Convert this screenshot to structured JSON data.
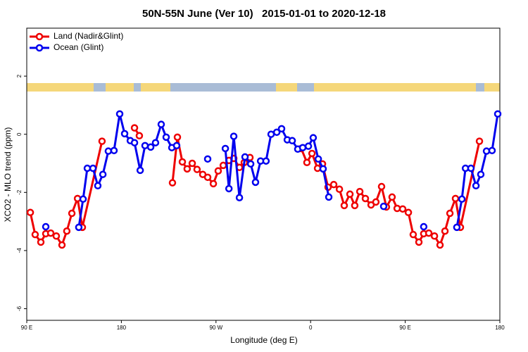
{
  "chart_data": {
    "type": "line",
    "title": "50N-55N June (Ver 10)   2015-01-01 to 2020-12-18",
    "x_label": "Longitude (deg E)",
    "y_label": "XCO2 - MLO trend (ppm)",
    "xlim": [
      90,
      540
    ],
    "xticks": [
      {
        "value": 90,
        "label": "90 E"
      },
      180,
      {
        "value": 270,
        "label": "90 W"
      },
      {
        "value": 360,
        "label": "0"
      },
      {
        "value": 450,
        "label": "90 E"
      },
      {
        "value": 540,
        "label": "180"
      }
    ],
    "ylim": [
      -6.4,
      3.65
    ],
    "yticks": [
      -6,
      -4,
      -2,
      0,
      2
    ],
    "legend": "top-left",
    "series": [
      {
        "name": "Land (Nadir&Glint)",
        "color": "#ee0000",
        "x": [
          93.4,
          98.0,
          103.4,
          108.1,
          112.8,
          118.1,
          123.5,
          128.1,
          132.9,
          138.3,
          142.9,
          161.6,
          null,
          192.5,
          197.1,
          null,
          228.6,
          233.3,
          238.0,
          242.6,
          247.4,
          252.0,
          257.4,
          262.1,
          267.5,
          272.1,
          276.9,
          282.3,
          286.9,
          292.3,
          296.9,
          302.3,
          null,
          351.1,
          356.5,
          361.3,
          366.6,
          371.3,
          376.6,
          382.0,
          387.4,
          392.0,
          397.4,
          402.0,
          406.8,
          412.1,
          417.5,
          422.1,
          427.5,
          432.1,
          437.5,
          442.3,
          447.6,
          453.0,
          457.6,
          463.0,
          467.6,
          472.4,
          477.8,
          483.1,
          487.8,
          492.5,
          497.8,
          502.5,
          520.6
        ],
        "values": [
          -2.69,
          -3.45,
          -3.71,
          -3.42,
          -3.4,
          -3.5,
          -3.81,
          -3.33,
          -2.72,
          -2.21,
          -3.2,
          -0.24,
          null,
          0.22,
          -0.05,
          null,
          -1.67,
          -0.1,
          -0.95,
          -1.19,
          -1.0,
          -1.21,
          -1.38,
          -1.48,
          -1.7,
          -1.26,
          -1.07,
          -0.9,
          -0.83,
          -1.14,
          -0.97,
          -0.8,
          null,
          -0.49,
          -0.97,
          -0.66,
          -1.17,
          -1.02,
          -1.82,
          -1.73,
          -1.89,
          -2.45,
          -2.06,
          -2.45,
          -1.97,
          -2.21,
          -2.43,
          -2.33,
          -1.8,
          -2.5,
          -2.16,
          -2.55,
          -2.57,
          -2.69,
          -3.45,
          -3.71,
          -3.42,
          -3.4,
          -3.5,
          -3.81,
          -3.33,
          -2.72,
          -2.21,
          -3.2,
          -0.24
        ]
      },
      {
        "name": "Ocean (Glint)",
        "color": "#0000ee",
        "x": [
          108.1,
          null,
          139.5,
          143.6,
          147.6,
          153.0,
          157.6,
          162.4,
          167.6,
          173.0,
          178.4,
          183.1,
          188.5,
          192.5,
          197.9,
          202.5,
          207.9,
          212.5,
          217.9,
          222.6,
          228.0,
          232.6,
          null,
          262.1,
          null,
          278.9,
          282.3,
          286.9,
          292.3,
          297.6,
          303.0,
          307.6,
          312.4,
          317.6,
          322.4,
          327.8,
          332.4,
          337.8,
          342.5,
          347.8,
          352.5,
          357.9,
          362.5,
          367.3,
          371.9,
          377.3,
          null,
          429.5,
          null,
          467.6,
          null,
          499.1,
          503.9,
          507.3,
          512.5,
          517.3,
          521.9,
          527.3,
          532.6,
          538.0
        ],
        "values": [
          -3.18,
          null,
          -3.2,
          -2.23,
          -1.17,
          -1.17,
          -1.77,
          -1.38,
          -0.58,
          -0.56,
          0.7,
          0.02,
          -0.22,
          -0.29,
          -1.24,
          -0.39,
          -0.44,
          -0.29,
          0.34,
          -0.1,
          -0.46,
          -0.39,
          null,
          -0.85,
          null,
          -0.49,
          -1.87,
          -0.07,
          -2.18,
          -0.78,
          -1.02,
          -1.65,
          -0.92,
          -0.92,
          0.0,
          0.07,
          0.19,
          -0.19,
          -0.22,
          -0.51,
          -0.46,
          -0.41,
          -0.12,
          -0.85,
          -1.19,
          -2.16,
          null,
          -2.48,
          null,
          -3.18,
          null,
          -3.2,
          -2.23,
          -1.17,
          -1.17,
          -1.77,
          -1.38,
          -0.58,
          -0.56,
          0.7
        ]
      }
    ]
  }
}
